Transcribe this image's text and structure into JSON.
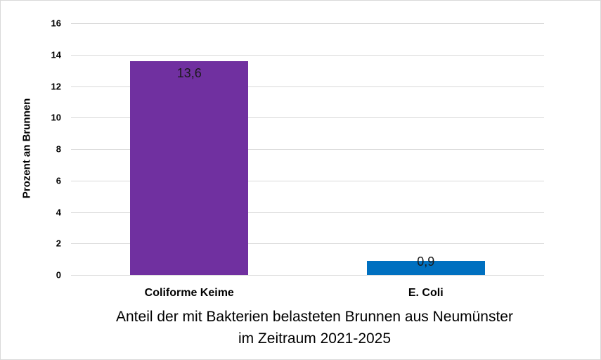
{
  "chart_data": {
    "type": "bar",
    "title": "",
    "xlabel": "Anteil der mit Bakterien belasteten Brunnen aus Neumünster im Zeitraum 2021-2025",
    "xlabel_lines": [
      "Anteil der mit Bakterien belasteten Brunnen aus Neumünster",
      "im Zeitraum 2021-2025"
    ],
    "ylabel": "Prozent an Brunnen",
    "categories": [
      "Coliforme Keime",
      "E. Coli"
    ],
    "values": [
      13.6,
      0.9
    ],
    "value_labels": [
      "13,6",
      "0,9"
    ],
    "colors": [
      "#7030A0",
      "#0070C0"
    ],
    "ylim": [
      0,
      16
    ],
    "yticks": [
      "0",
      "2",
      "4",
      "6",
      "8",
      "10",
      "12",
      "14",
      "16"
    ],
    "grid": true,
    "legend": null
  }
}
